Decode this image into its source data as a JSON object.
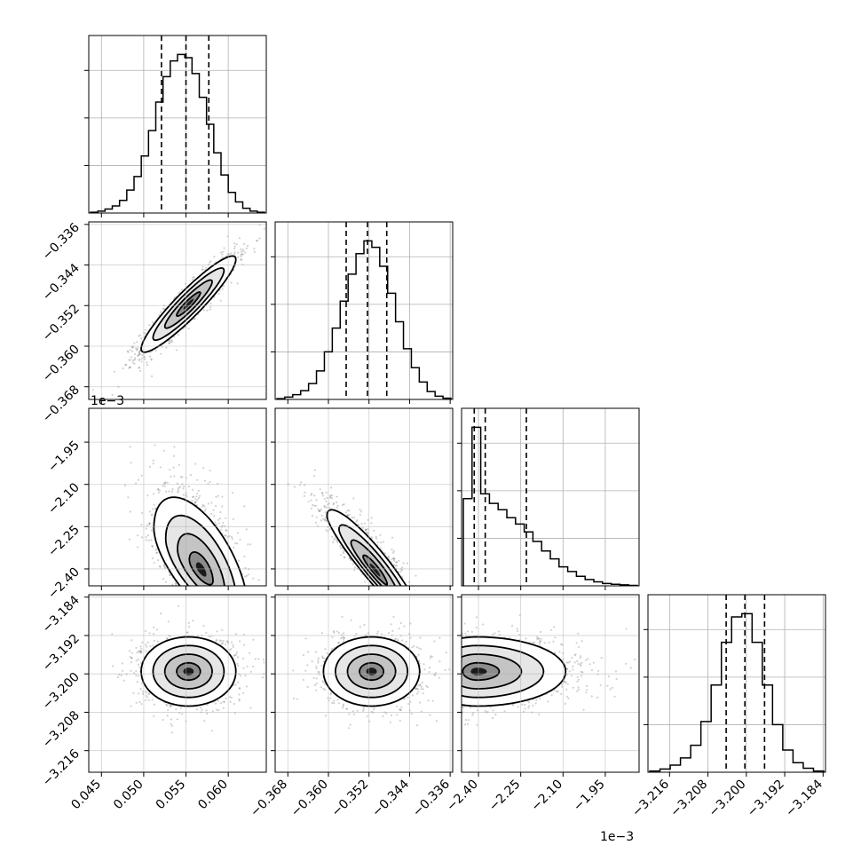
{
  "chart_data": {
    "type": "corner",
    "parameters": [
      {
        "axis_range": [
          0.0435,
          0.0645
        ],
        "ticks": [
          0.045,
          0.05,
          0.055,
          0.06
        ],
        "tick_labels": [
          "0.045",
          "0.050",
          "0.055",
          "0.060"
        ],
        "offset_label": "",
        "quantiles": [
          0.0521,
          0.055,
          0.0577
        ],
        "hist_bins": [
          0.005,
          0.012,
          0.025,
          0.045,
          0.08,
          0.145,
          0.23,
          0.36,
          0.52,
          0.7,
          0.86,
          0.96,
          1.0,
          0.98,
          0.88,
          0.73,
          0.56,
          0.38,
          0.24,
          0.13,
          0.07,
          0.03,
          0.012,
          0.005
        ]
      },
      {
        "axis_range": [
          -0.3705,
          -0.3355
        ],
        "ticks": [
          -0.368,
          -0.36,
          -0.352,
          -0.344,
          -0.336
        ],
        "tick_labels": [
          "−0.368",
          "−0.360",
          "−0.352",
          "−0.344",
          "−0.336"
        ],
        "offset_label": "",
        "quantiles": [
          -0.3565,
          -0.3523,
          -0.3485
        ],
        "hist_bins": [
          0.005,
          0.015,
          0.03,
          0.055,
          0.1,
          0.18,
          0.3,
          0.45,
          0.62,
          0.79,
          0.92,
          1.0,
          0.96,
          0.84,
          0.67,
          0.49,
          0.32,
          0.2,
          0.11,
          0.05,
          0.02,
          0.008
        ]
      },
      {
        "axis_range": [
          -2.46,
          -1.83
        ],
        "ticks": [
          -2.4,
          -2.25,
          -2.1,
          -1.95
        ],
        "tick_labels": [
          "−2.40",
          "−2.25",
          "−2.10",
          "−1.95"
        ],
        "offset_label": "1e−3",
        "quantiles": [
          -2.415,
          -2.376,
          -2.23
        ],
        "hist_bins": [
          0.55,
          1.0,
          0.58,
          0.52,
          0.48,
          0.43,
          0.39,
          0.34,
          0.28,
          0.22,
          0.17,
          0.12,
          0.09,
          0.06,
          0.04,
          0.025,
          0.015,
          0.01,
          0.006,
          0.003
        ]
      },
      {
        "axis_range": [
          -3.2205,
          -3.1835
        ],
        "ticks": [
          -3.216,
          -3.208,
          -3.2,
          -3.192,
          -3.184
        ],
        "tick_labels": [
          "−3.216",
          "−3.208",
          "−3.200",
          "−3.192",
          "−3.184"
        ],
        "offset_label": "1e−3",
        "quantiles": [
          -3.2042,
          -3.2003,
          -3.1962
        ],
        "hist_bins": [
          0.008,
          0.02,
          0.045,
          0.09,
          0.17,
          0.32,
          0.55,
          0.82,
          0.98,
          1.0,
          0.82,
          0.55,
          0.3,
          0.14,
          0.06,
          0.025,
          0.008
        ]
      }
    ],
    "pair_panels": [
      {
        "x": 0,
        "y": 1,
        "peak": [
          0.0553,
          -0.3517
        ],
        "cov": [
          [
            7.84e-06,
            1.232e-05
          ],
          [
            1.232e-05,
            2.25e-05
          ]
        ]
      },
      {
        "x": 0,
        "y": 2,
        "peak": [
          0.0568,
          -2.405
        ],
        "cov": [
          [
            7.84e-06,
            -0.00021
          ],
          [
            -0.00021,
            0.0103
          ]
        ]
      },
      {
        "x": 1,
        "y": 2,
        "peak": [
          -0.3508,
          -2.405
        ],
        "cov": [
          [
            2.25e-05,
            -0.00046
          ],
          [
            -0.00046,
            0.0103
          ]
        ]
      },
      {
        "x": 0,
        "y": 3,
        "peak": [
          0.0553,
          -3.1995
        ],
        "cov": [
          [
            7.84e-06,
            0.0
          ],
          [
            0.0,
            1.3e-05
          ]
        ]
      },
      {
        "x": 1,
        "y": 3,
        "peak": [
          -0.3515,
          -3.1995
        ],
        "cov": [
          [
            2.25e-05,
            0.0
          ],
          [
            0.0,
            1.3e-05
          ]
        ]
      },
      {
        "x": 2,
        "y": 3,
        "peak": [
          -2.405,
          -3.1995
        ],
        "cov": [
          [
            0.0103,
            0.0
          ],
          [
            0.0,
            1.3e-05
          ]
        ]
      }
    ],
    "grid": true,
    "contour_levels": [
      "0.5σ",
      "1σ",
      "1.5σ",
      "2σ"
    ]
  }
}
